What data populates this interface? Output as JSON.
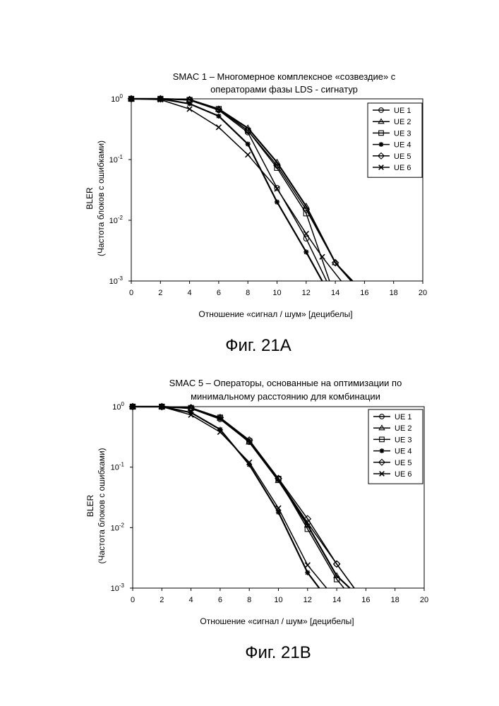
{
  "chart_data": [
    {
      "type": "line",
      "title_line1": "SMAC 1 – Многомерное комплексное «созвездие» с",
      "title_line2": "операторами фазы LDS - сигнатур",
      "xlabel": "Отношение «сигнал / шум» [децибелы]",
      "ylabel_line1": "BLER",
      "ylabel_line2": "(Частота блоков с ошибками)",
      "caption": "Фиг. 21A",
      "y_scale": "log",
      "xlim": [
        0,
        20
      ],
      "ylim": [
        0.001,
        1
      ],
      "x_ticks": [
        "0",
        "2",
        "4",
        "6",
        "8",
        "10",
        "12",
        "14",
        "16",
        "18",
        "20"
      ],
      "y_ticks": [
        {
          "base": "10",
          "exp": "0"
        },
        {
          "base": "10",
          "exp": "-1"
        },
        {
          "base": "10",
          "exp": "-2"
        },
        {
          "base": "10",
          "exp": "-3"
        }
      ],
      "legend_position": "top-right",
      "series": [
        {
          "name": "UE 1",
          "marker": "circle",
          "x": [
            0,
            2,
            4,
            6,
            8,
            10,
            12,
            13.4
          ],
          "y": [
            1,
            1,
            0.95,
            0.65,
            0.28,
            0.034,
            0.005,
            0.001
          ]
        },
        {
          "name": "UE 2",
          "marker": "triangle",
          "x": [
            0,
            2,
            4,
            6,
            8,
            10,
            12,
            14,
            15.1
          ],
          "y": [
            1,
            1,
            0.97,
            0.68,
            0.33,
            0.09,
            0.017,
            0.002,
            0.001
          ]
        },
        {
          "name": "UE 3",
          "marker": "square",
          "x": [
            0,
            2,
            4,
            6,
            8,
            10,
            12,
            13.6
          ],
          "y": [
            1,
            1,
            0.96,
            0.68,
            0.3,
            0.073,
            0.013,
            0.001
          ]
        },
        {
          "name": "UE 4",
          "marker": "star",
          "x": [
            0,
            2,
            4,
            6,
            8,
            10,
            12,
            13.1
          ],
          "y": [
            1,
            1,
            0.83,
            0.52,
            0.18,
            0.02,
            0.003,
            0.001
          ]
        },
        {
          "name": "UE 5",
          "marker": "diamond",
          "x": [
            0,
            2,
            4,
            6,
            8,
            10,
            12,
            14,
            15.2
          ],
          "y": [
            1,
            1,
            0.97,
            0.67,
            0.3,
            0.08,
            0.015,
            0.002,
            0.001
          ]
        },
        {
          "name": "UE 6",
          "marker": "x",
          "x": [
            0,
            2,
            4,
            6,
            8,
            10,
            12,
            13.1,
            14.4
          ],
          "y": [
            1,
            0.97,
            0.68,
            0.34,
            0.12,
            0.033,
            0.006,
            0.0025,
            0.001
          ]
        }
      ]
    },
    {
      "type": "line",
      "title_line1": "SMAC 5 – Операторы, основанные на оптимизации по",
      "title_line2": "минимальному расстоянию для комбинации",
      "xlabel": "Отношение «сигнал / шум» [децибелы]",
      "ylabel_line1": "BLER",
      "ylabel_line2": "(Частота блоков с ошибками)",
      "caption": "Фиг. 21B",
      "y_scale": "log",
      "xlim": [
        0,
        20
      ],
      "ylim": [
        0.001,
        1
      ],
      "x_ticks": [
        "0",
        "2",
        "4",
        "6",
        "8",
        "10",
        "12",
        "14",
        "16",
        "18",
        "20"
      ],
      "y_ticks": [
        {
          "base": "10",
          "exp": "0"
        },
        {
          "base": "10",
          "exp": "-1"
        },
        {
          "base": "10",
          "exp": "-2"
        },
        {
          "base": "10",
          "exp": "-3"
        }
      ],
      "legend_position": "top-right",
      "series": [
        {
          "name": "UE 1",
          "marker": "circle",
          "x": [
            0,
            2,
            4,
            6,
            8,
            10,
            12,
            14,
            15.2
          ],
          "y": [
            1,
            1,
            0.93,
            0.62,
            0.26,
            0.063,
            0.012,
            0.0025,
            0.001
          ]
        },
        {
          "name": "UE 2",
          "marker": "triangle",
          "x": [
            0,
            2,
            4,
            6,
            8,
            10,
            12,
            14,
            14.9
          ],
          "y": [
            1,
            1,
            0.95,
            0.65,
            0.26,
            0.06,
            0.011,
            0.0016,
            0.001
          ]
        },
        {
          "name": "UE 3",
          "marker": "square",
          "x": [
            0,
            2,
            4,
            6,
            8,
            10,
            12,
            14,
            14.5
          ],
          "y": [
            1,
            1,
            0.95,
            0.66,
            0.27,
            0.064,
            0.0095,
            0.0014,
            0.001
          ]
        },
        {
          "name": "UE 4",
          "marker": "star",
          "x": [
            0,
            2,
            4,
            6,
            8,
            10,
            12,
            12.8
          ],
          "y": [
            1,
            1,
            0.8,
            0.42,
            0.11,
            0.018,
            0.0018,
            0.001
          ]
        },
        {
          "name": "UE 5",
          "marker": "diamond",
          "x": [
            0,
            2,
            4,
            6,
            8,
            10,
            12,
            14,
            15.2
          ],
          "y": [
            1,
            1,
            0.96,
            0.66,
            0.28,
            0.065,
            0.014,
            0.0025,
            0.001
          ]
        },
        {
          "name": "UE 6",
          "marker": "x",
          "x": [
            0,
            2,
            4,
            6,
            8,
            10,
            12,
            13.3
          ],
          "y": [
            1,
            1,
            0.73,
            0.38,
            0.12,
            0.021,
            0.0024,
            0.001
          ]
        }
      ]
    }
  ]
}
